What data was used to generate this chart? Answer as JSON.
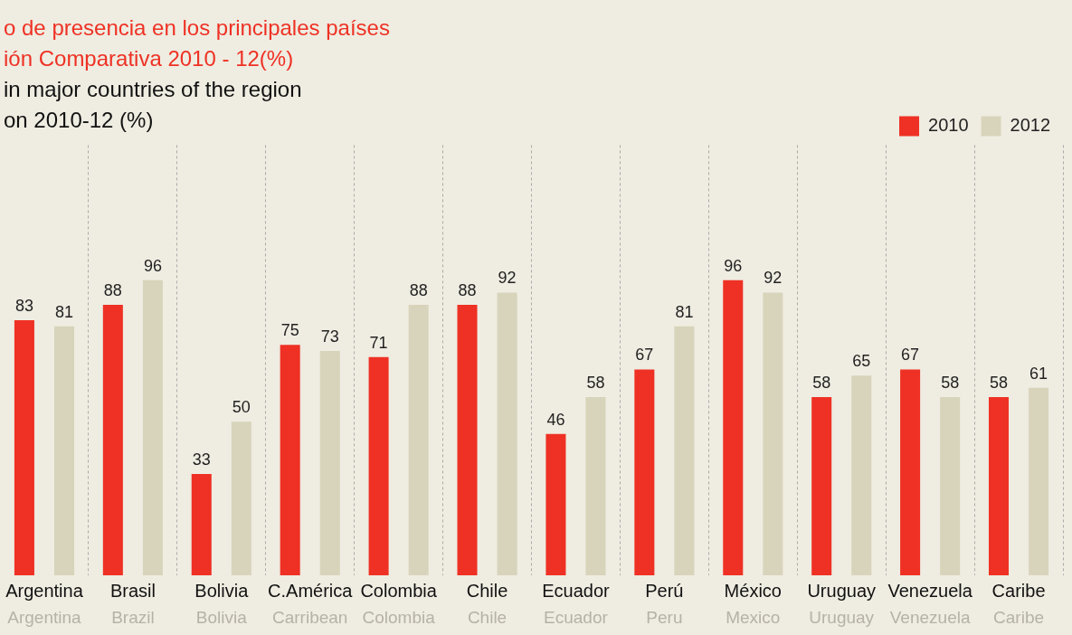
{
  "chart_data": {
    "type": "bar",
    "title": "o de presencia en los principales países\nión Comparativa 2010 - 12(%)",
    "subtitle": "in major countries of the region\non 2010-12 (%)",
    "categories": [
      "Argentina",
      "Brasil",
      "Bolivia",
      "C.América",
      "Colombia",
      "Chile",
      "Ecuador",
      "Perú",
      "México",
      "Uruguay",
      "Venezuela",
      "Caribe"
    ],
    "series": [
      {
        "name": "2010",
        "color": "#ee3124",
        "values": [
          83,
          88,
          33,
          75,
          71,
          88,
          46,
          67,
          96,
          58,
          67,
          58
        ]
      },
      {
        "name": "2012",
        "color": "#d8d4bb",
        "values": [
          81,
          96,
          50,
          73,
          88,
          92,
          58,
          81,
          92,
          65,
          58,
          61
        ]
      }
    ],
    "annotations": [
      "Argentina",
      "Brazil",
      "Bolivia",
      "Carribean",
      "Colombia",
      "Chile",
      "Ecuador",
      "Peru",
      "Mexico",
      "Uruguay",
      "Venezuela",
      "Caribe"
    ],
    "data_labels": true,
    "grid": "x",
    "legend": "top right"
  }
}
